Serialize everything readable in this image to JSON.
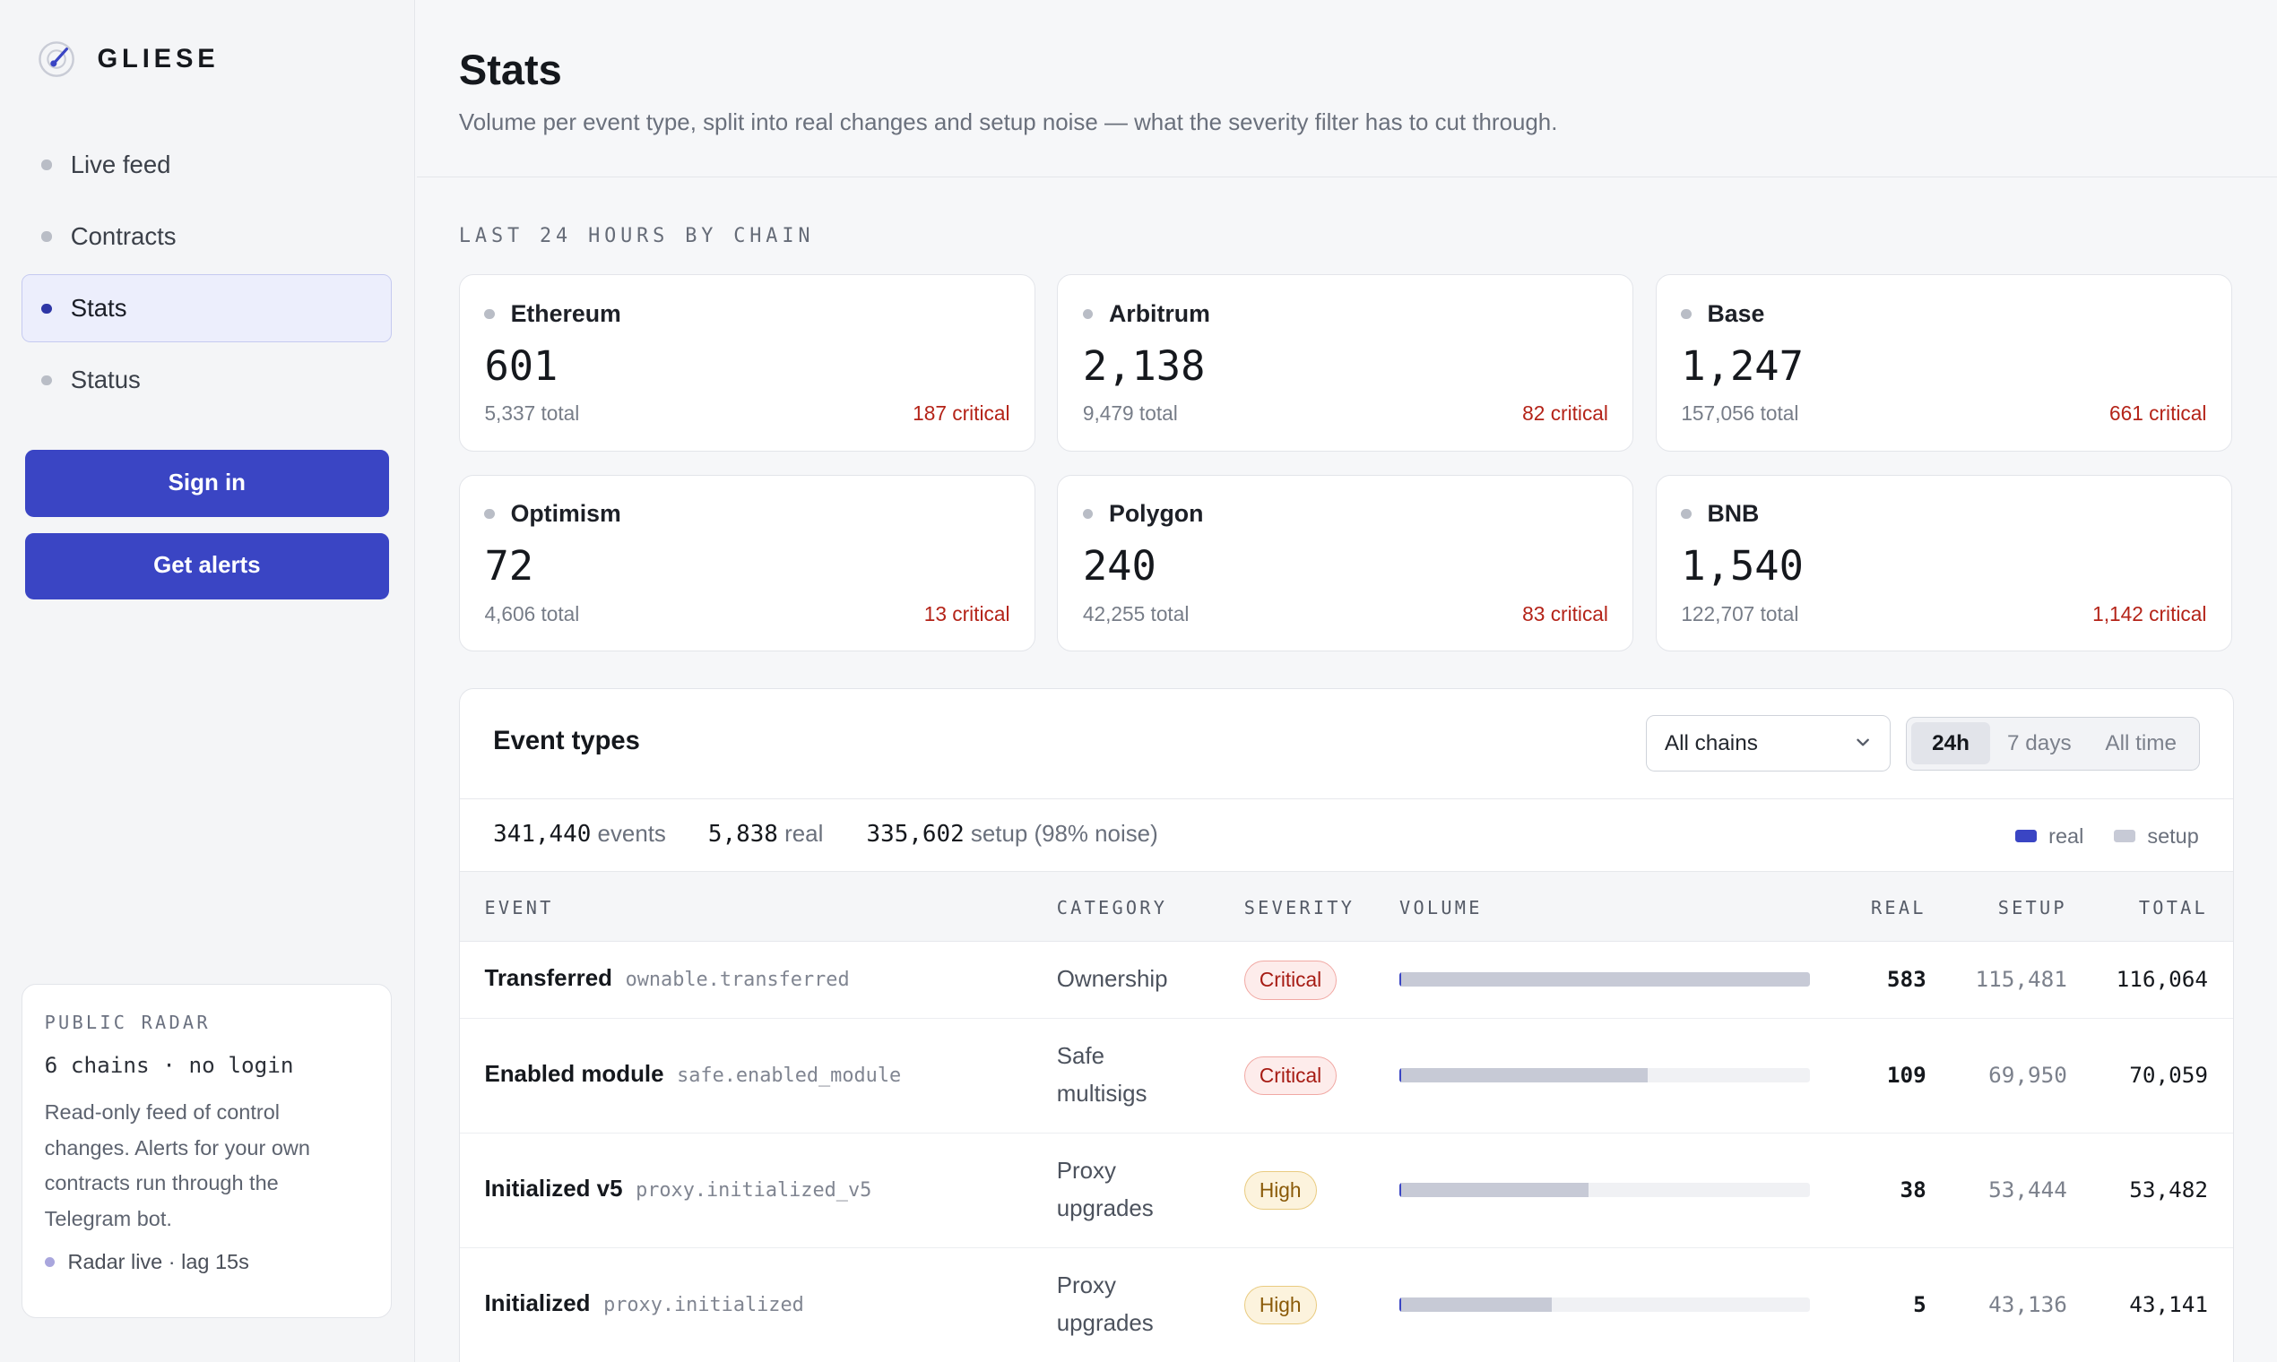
{
  "brand": {
    "name": "GLIESE",
    "logo_icon": "radar-icon"
  },
  "nav": {
    "items": [
      {
        "label": "Live feed",
        "active": false
      },
      {
        "label": "Contracts",
        "active": false
      },
      {
        "label": "Stats",
        "active": true
      },
      {
        "label": "Status",
        "active": false
      }
    ]
  },
  "actions": {
    "sign_in": "Sign in",
    "get_alerts": "Get alerts"
  },
  "radar": {
    "kicker": "PUBLIC RADAR",
    "meta": "6 chains · no login",
    "description": "Read-only feed of control changes. Alerts for your own contracts run through the Telegram bot.",
    "status": "Radar live · lag 15s"
  },
  "header": {
    "title": "Stats",
    "subtitle": "Volume per event type, split into real changes and setup noise — what the severity filter has to cut through."
  },
  "chains_section": {
    "label": "LAST 24 HOURS BY CHAIN",
    "chains": [
      {
        "name": "Ethereum",
        "value": "601",
        "total": "5,337 total",
        "critical": "187 critical"
      },
      {
        "name": "Arbitrum",
        "value": "2,138",
        "total": "9,479 total",
        "critical": "82 critical"
      },
      {
        "name": "Base",
        "value": "1,247",
        "total": "157,056 total",
        "critical": "661 critical"
      },
      {
        "name": "Optimism",
        "value": "72",
        "total": "4,606 total",
        "critical": "13 critical"
      },
      {
        "name": "Polygon",
        "value": "240",
        "total": "42,255 total",
        "critical": "83 critical"
      },
      {
        "name": "BNB",
        "value": "1,540",
        "total": "122,707 total",
        "critical": "1,142 critical"
      }
    ]
  },
  "events": {
    "title": "Event types",
    "chain_filter": {
      "selected": "All chains"
    },
    "ranges": [
      {
        "label": "24h",
        "active": true
      },
      {
        "label": "7 days",
        "active": false
      },
      {
        "label": "All time",
        "active": false
      }
    ],
    "summary": {
      "events_num": "341,440",
      "events_label": "events",
      "real_num": "5,838",
      "real_label": "real",
      "setup_num": "335,602",
      "setup_label": "setup (98% noise)"
    },
    "legend": {
      "real": "real",
      "setup": "setup",
      "real_color": "#3a45c4",
      "setup_color": "#c7cad6"
    },
    "columns": {
      "event": "EVENT",
      "category": "CATEGORY",
      "severity": "SEVERITY",
      "volume": "VOLUME",
      "real": "REAL",
      "setup": "SETUP",
      "total": "TOTAL"
    },
    "rows": [
      {
        "name": "Transferred",
        "key": "ownable.transferred",
        "category": "Ownership",
        "severity": "Critical",
        "real": "583",
        "setup": "115,481",
        "total": "116,064",
        "real_count": 583,
        "setup_count": 115481
      },
      {
        "name": "Enabled module",
        "key": "safe.enabled_module",
        "category": "Safe multisigs",
        "severity": "Critical",
        "real": "109",
        "setup": "69,950",
        "total": "70,059",
        "real_count": 109,
        "setup_count": 69950
      },
      {
        "name": "Initialized v5",
        "key": "proxy.initialized_v5",
        "category": "Proxy upgrades",
        "severity": "High",
        "real": "38",
        "setup": "53,444",
        "total": "53,482",
        "real_count": 38,
        "setup_count": 53444
      },
      {
        "name": "Initialized",
        "key": "proxy.initialized",
        "category": "Proxy upgrades",
        "severity": "High",
        "real": "5",
        "setup": "43,136",
        "total": "43,141",
        "real_count": 5,
        "setup_count": 43136
      }
    ]
  }
}
